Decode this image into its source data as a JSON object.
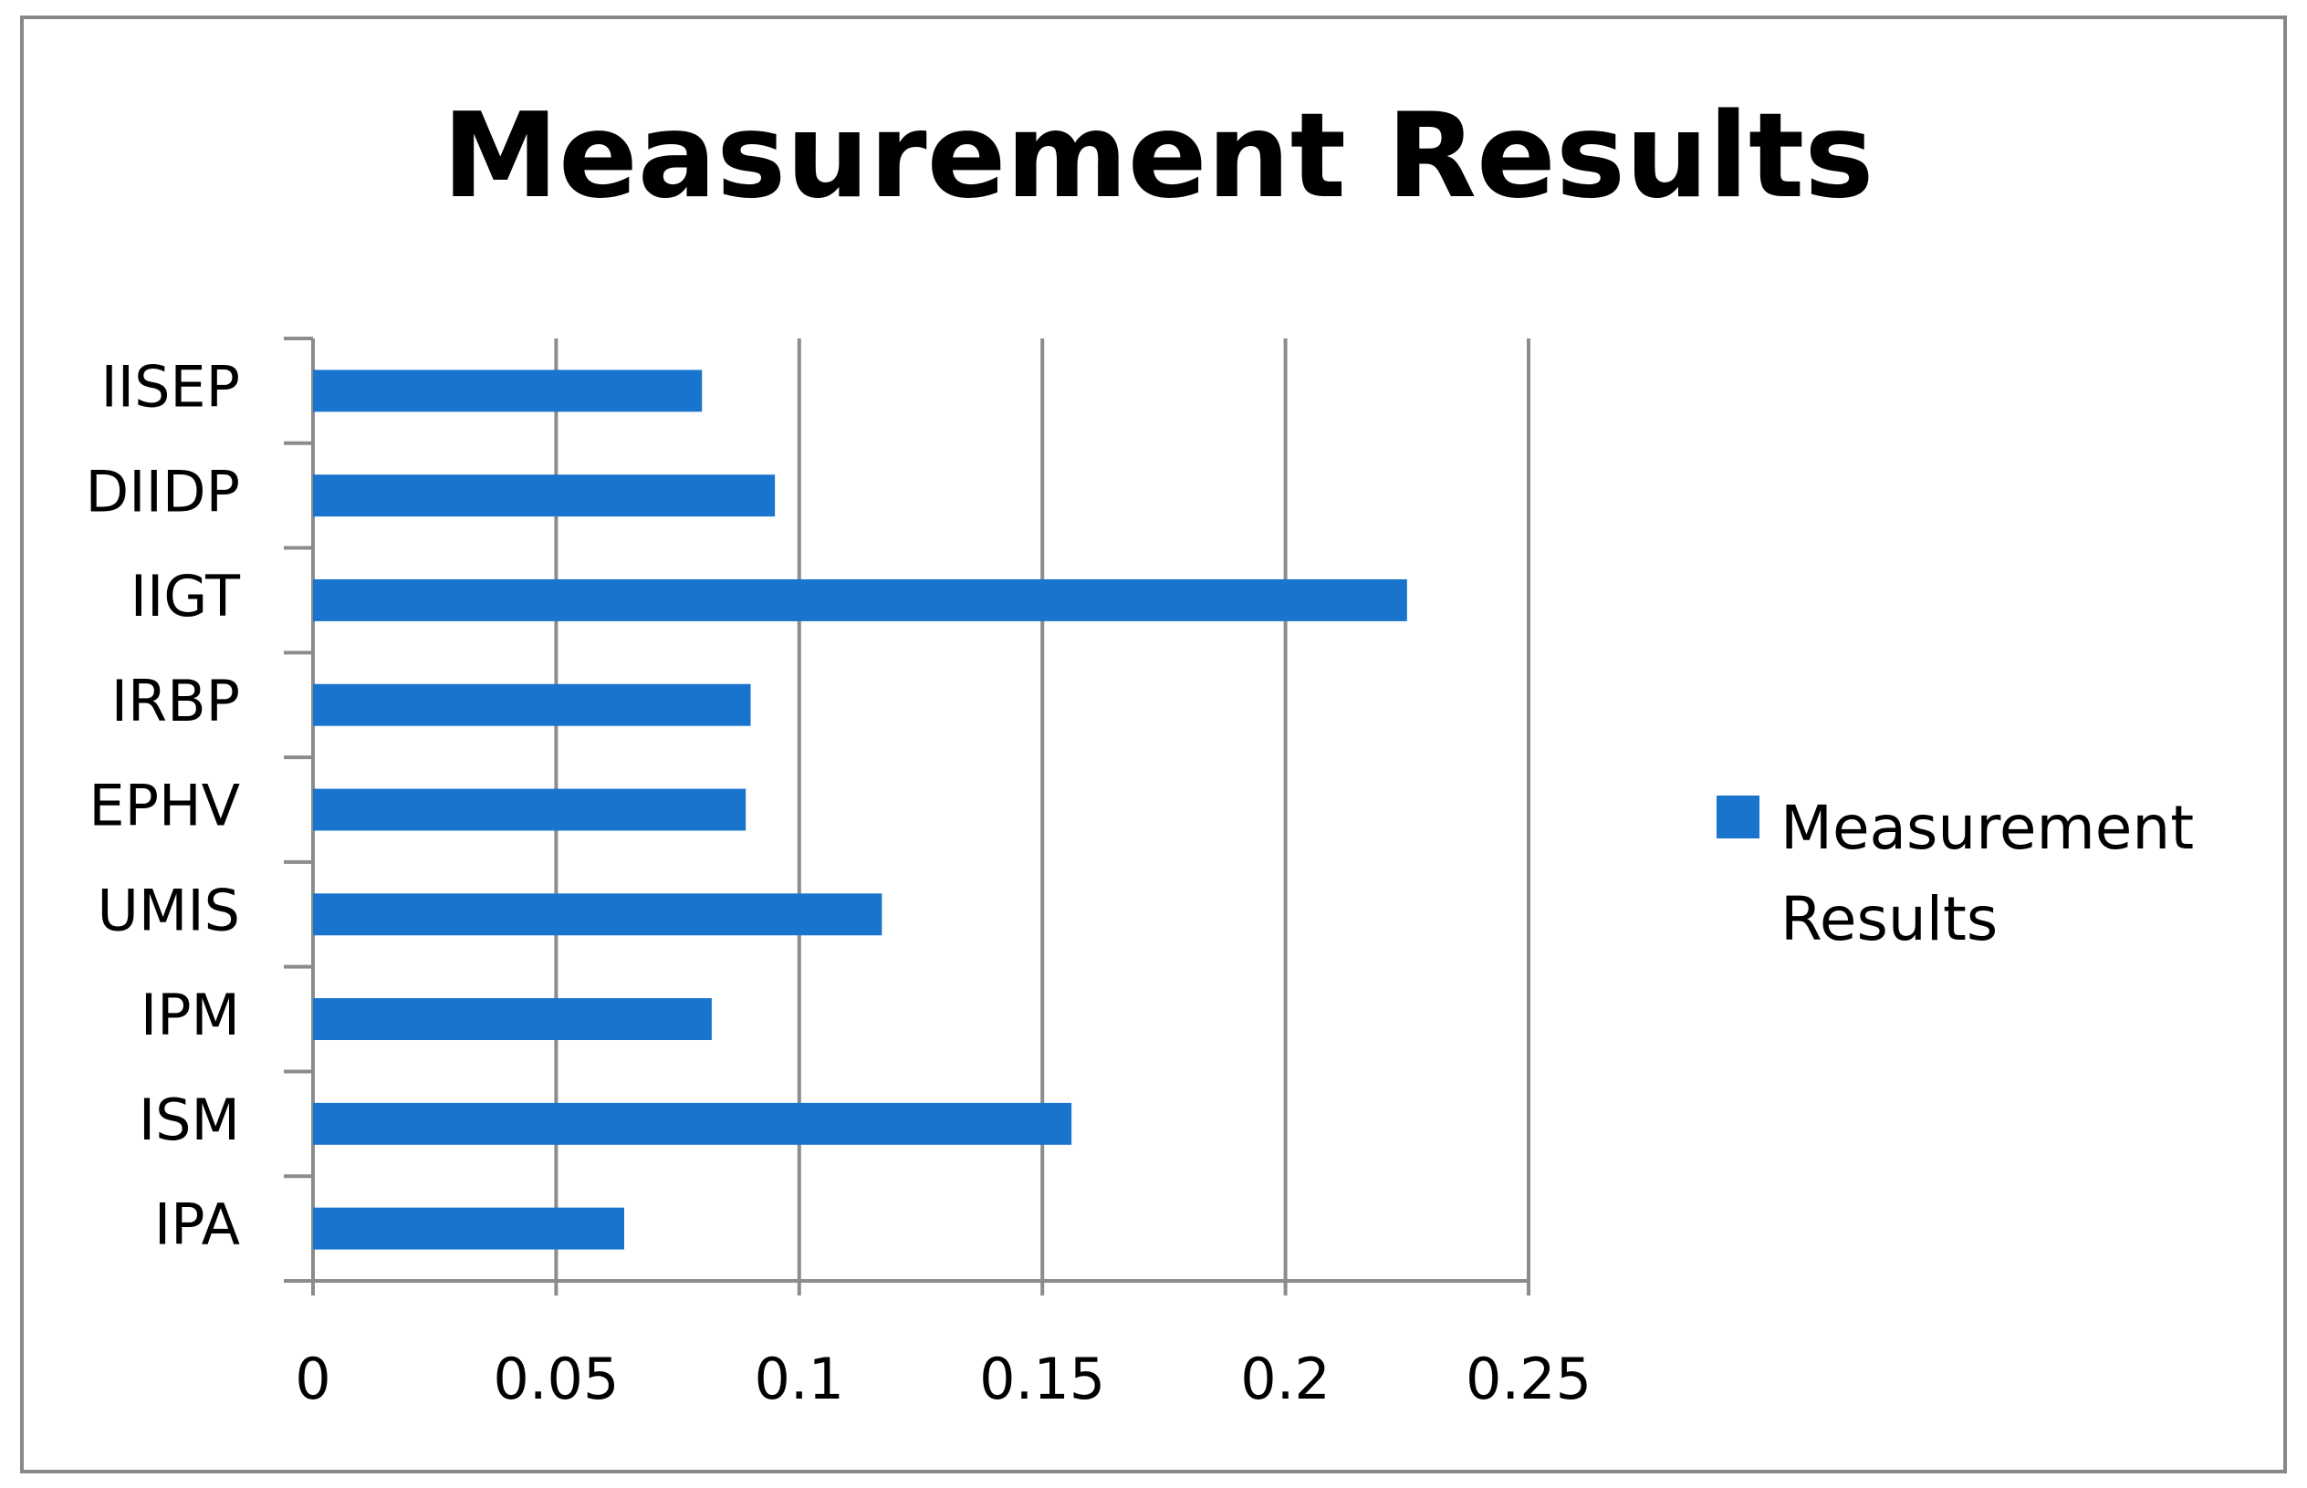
{
  "chart_data": {
    "type": "bar",
    "orientation": "horizontal",
    "title": "Measurement Results",
    "categories": [
      "IISEP",
      "DIIDP",
      "IIGT",
      "IRBP",
      "EPHV",
      "UMIS",
      "IPM",
      "ISM",
      "IPA"
    ],
    "series": [
      {
        "name": "Measurement Results",
        "color": "#1874cd",
        "values": [
          0.08,
          0.095,
          0.225,
          0.09,
          0.089,
          0.117,
          0.082,
          0.156,
          0.064
        ]
      }
    ],
    "xlim": [
      0,
      0.25
    ],
    "xticks": [
      0,
      0.05,
      0.1,
      0.15,
      0.2,
      0.25
    ],
    "grid": true,
    "legend": "right"
  }
}
